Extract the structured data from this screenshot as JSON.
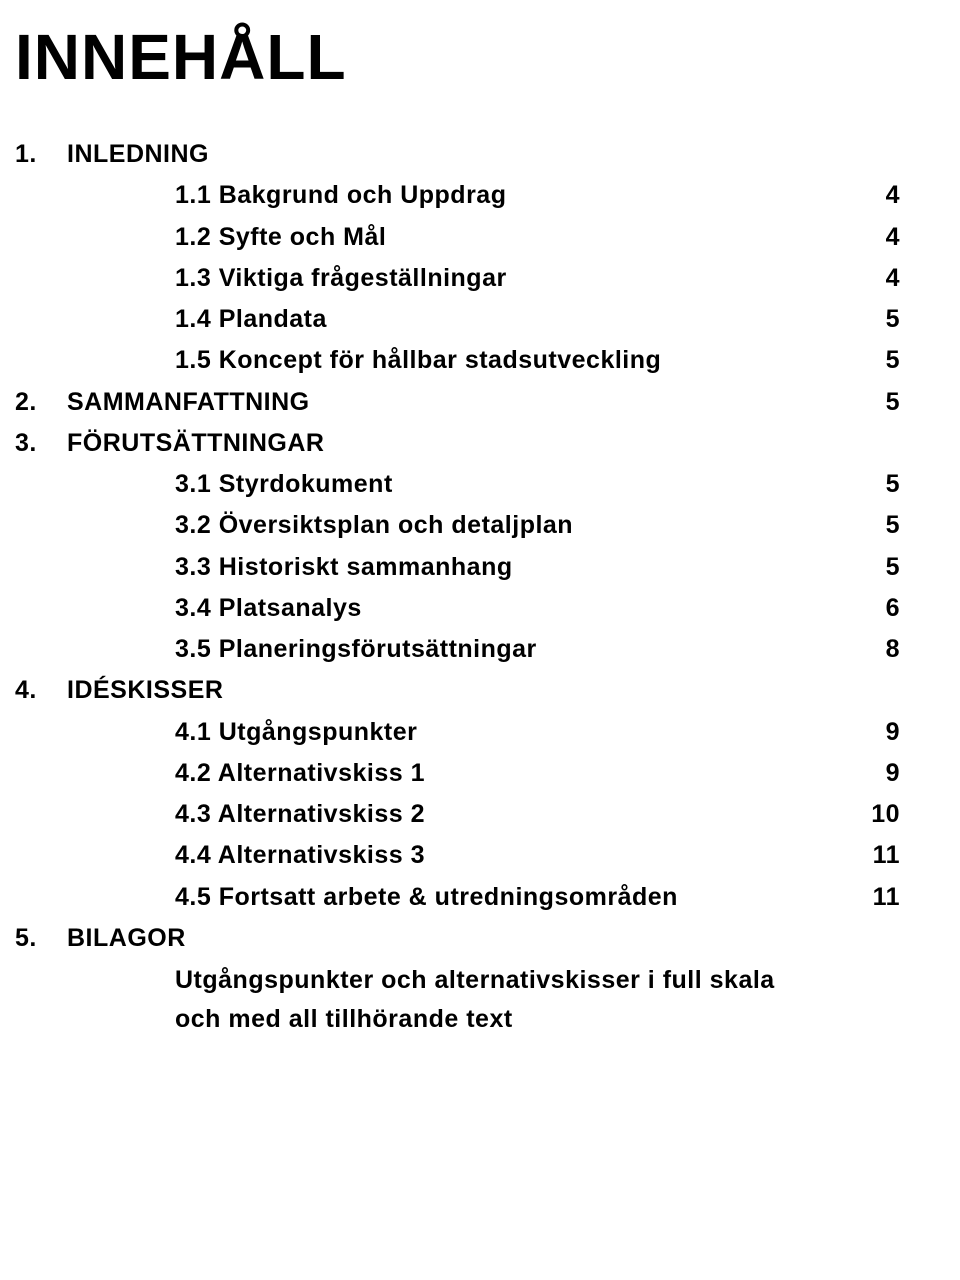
{
  "title": "INNEHÅLL",
  "sections": [
    {
      "num": "1.",
      "label": "INLEDNING",
      "page": "",
      "subs": [
        {
          "label": "1.1 Bakgrund och Uppdrag",
          "page": "4"
        },
        {
          "label": "1.2 Syfte och Mål",
          "page": "4"
        },
        {
          "label": "1.3 Viktiga frågeställningar",
          "page": "4"
        },
        {
          "label": "1.4 Plandata",
          "page": "5"
        },
        {
          "label": "1.5 Koncept för hållbar stadsutveckling",
          "page": "5"
        }
      ]
    },
    {
      "num": "2.",
      "label": "SAMMANFATTNING",
      "page": "5",
      "subs": []
    },
    {
      "num": "3.",
      "label": "FÖRUTSÄTTNINGAR",
      "page": "",
      "subs": [
        {
          "label": "3.1 Styrdokument",
          "page": "5"
        },
        {
          "label": "3.2 Översiktsplan och detaljplan",
          "page": "5"
        },
        {
          "label": "3.3 Historiskt sammanhang",
          "page": "5"
        },
        {
          "label": "3.4 Platsanalys",
          "page": "6"
        },
        {
          "label": "3.5 Planeringsförutsättningar",
          "page": "8"
        }
      ]
    },
    {
      "num": "4.",
      "label": "IDÉSKISSER",
      "page": "",
      "subs": [
        {
          "label": "4.1 Utgångspunkter",
          "page": "9"
        },
        {
          "label": "4.2 Alternativskiss 1",
          "page": "9"
        },
        {
          "label": "4.3 Alternativskiss 2",
          "page": "10"
        },
        {
          "label": "4.4 Alternativskiss 3",
          "page": "11"
        },
        {
          "label": "4.5 Fortsatt arbete & utredningsområden",
          "page": "11"
        }
      ]
    },
    {
      "num": "5.",
      "label": "BILAGOR",
      "page": "",
      "subs": [],
      "note": [
        "Utgångspunkter och alternativskisser i full skala",
        "och med all tillhörande text"
      ]
    }
  ]
}
